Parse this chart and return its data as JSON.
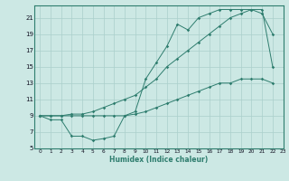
{
  "xlabel": "Humidex (Indice chaleur)",
  "bg_color": "#cce8e4",
  "grid_color": "#aacfcb",
  "line_color": "#2e7d6e",
  "line1_x": [
    0,
    1,
    2,
    3,
    4,
    5,
    6,
    7,
    8,
    9,
    10,
    11,
    12,
    13,
    14,
    15,
    16,
    17,
    18,
    19,
    20,
    21,
    22
  ],
  "line1_y": [
    9,
    8.5,
    8.5,
    6.5,
    6.5,
    6,
    6.2,
    6.5,
    9,
    9.5,
    13.5,
    15.5,
    17.5,
    20.2,
    19.5,
    21,
    21.5,
    22,
    22,
    22,
    22,
    21.5,
    19
  ],
  "line2_x": [
    0,
    1,
    2,
    3,
    4,
    5,
    6,
    7,
    8,
    9,
    10,
    11,
    12,
    13,
    14,
    15,
    16,
    17,
    18,
    19,
    20,
    21,
    22
  ],
  "line2_y": [
    9,
    9,
    9,
    9.2,
    9.2,
    9.5,
    10,
    10.5,
    11,
    11.5,
    12.5,
    13.5,
    15,
    16,
    17,
    18,
    19,
    20,
    21,
    21.5,
    22,
    22,
    15
  ],
  "line3_x": [
    0,
    1,
    2,
    3,
    4,
    5,
    6,
    7,
    8,
    9,
    10,
    11,
    12,
    13,
    14,
    15,
    16,
    17,
    18,
    19,
    20,
    21,
    22
  ],
  "line3_y": [
    9,
    9,
    9,
    9,
    9,
    9,
    9,
    9,
    9,
    9.2,
    9.5,
    10,
    10.5,
    11,
    11.5,
    12,
    12.5,
    13,
    13,
    13.5,
    13.5,
    13.5,
    13
  ],
  "xlim": [
    -0.5,
    23
  ],
  "ylim": [
    5,
    22.5
  ],
  "yticks": [
    5,
    7,
    9,
    11,
    13,
    15,
    17,
    19,
    21
  ],
  "xticks": [
    0,
    1,
    2,
    3,
    4,
    5,
    6,
    7,
    8,
    9,
    10,
    11,
    12,
    13,
    14,
    15,
    16,
    17,
    18,
    19,
    20,
    21,
    22,
    23
  ]
}
